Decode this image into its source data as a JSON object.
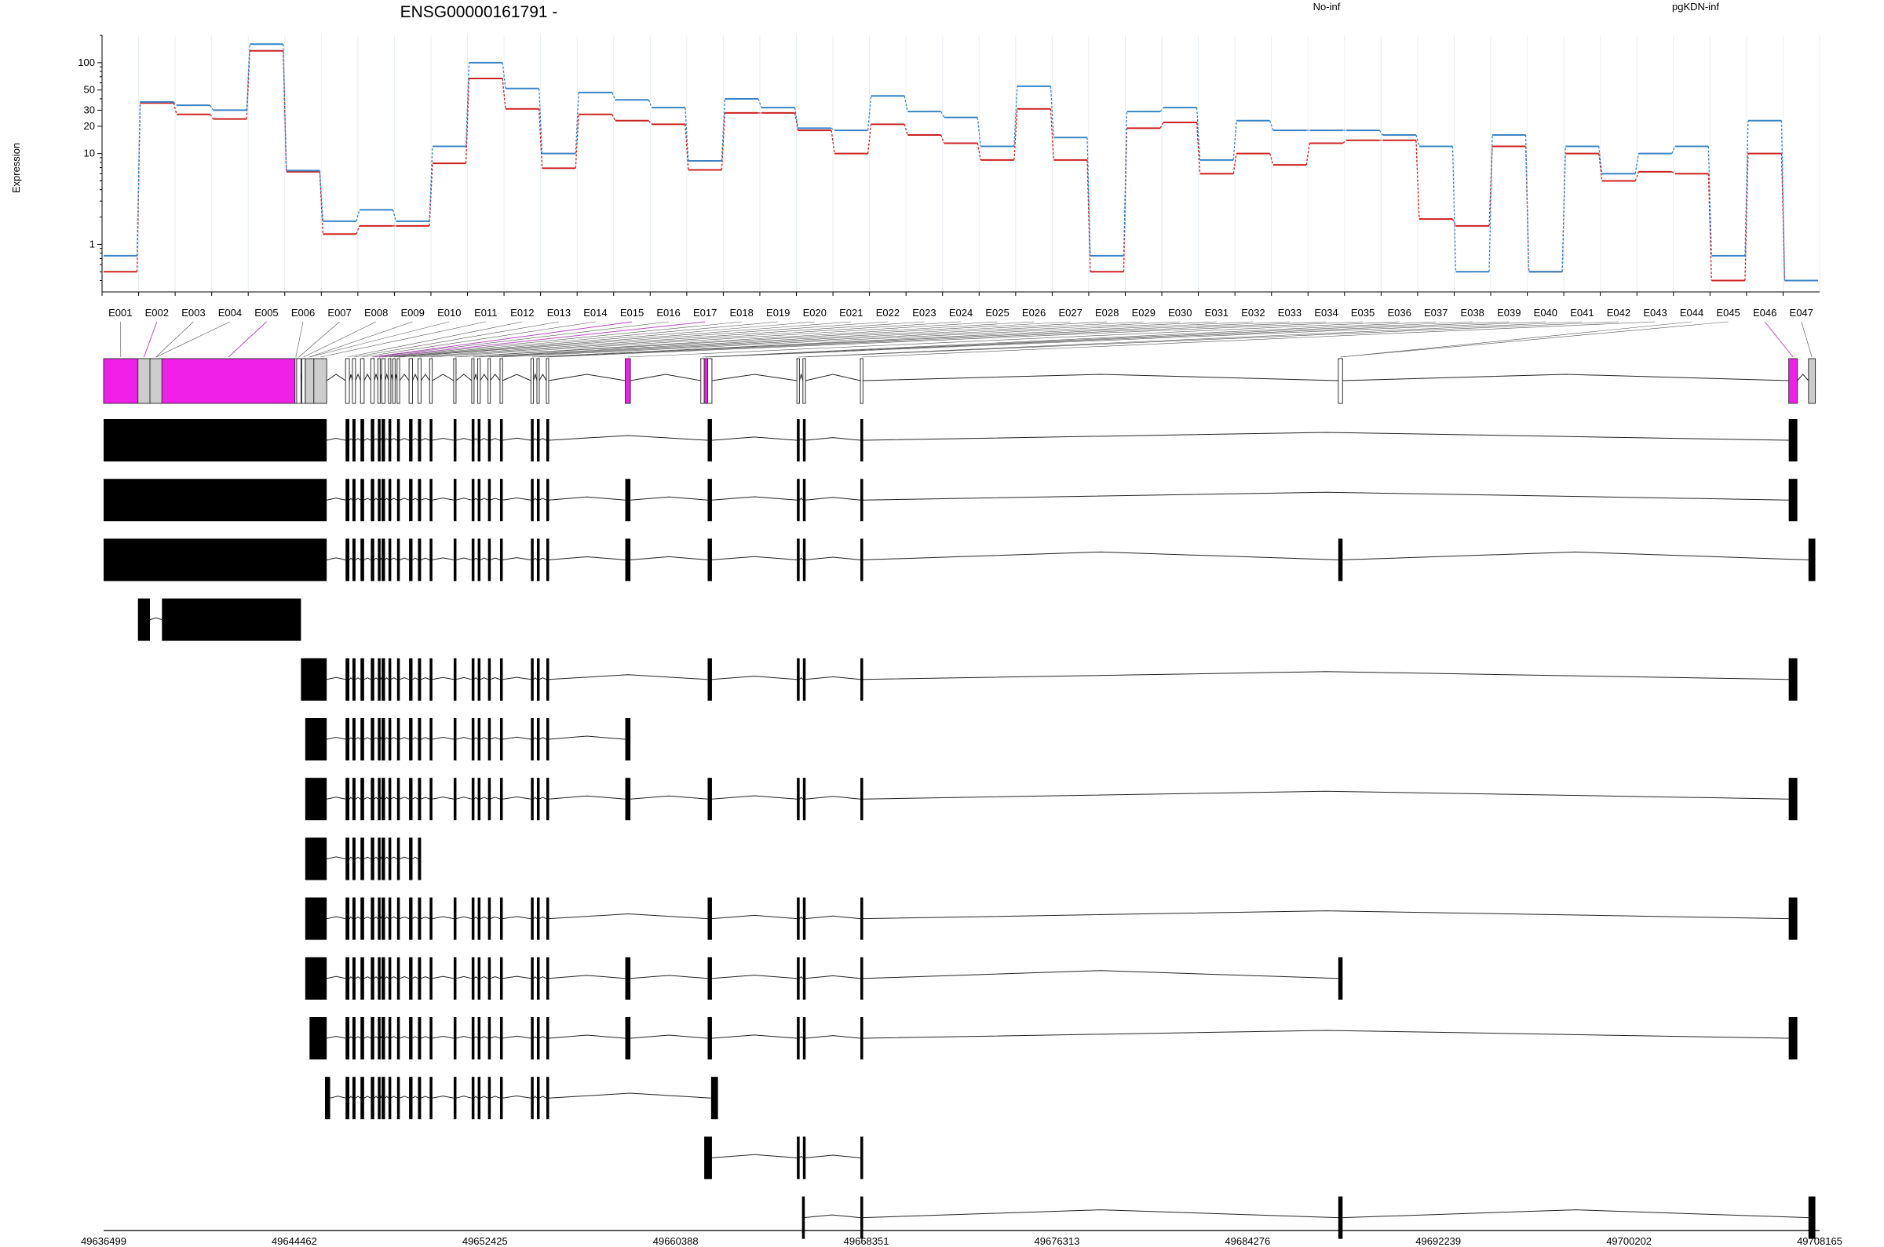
{
  "title": "ENSG00000161791 -",
  "ylabel": "Expression",
  "chart_data": {
    "type": "line",
    "title": "ENSG00000161791 -",
    "ylabel": "Expression",
    "yscale": "log",
    "ylim": [
      0.3,
      200
    ],
    "yticks": [
      1,
      10,
      20,
      30,
      50,
      100
    ],
    "grid": true,
    "legend_position": "top-right",
    "categories": [
      "E001",
      "E002",
      "E003",
      "E004",
      "E005",
      "E006",
      "E007",
      "E008",
      "E009",
      "E010",
      "E011",
      "E012",
      "E013",
      "E014",
      "E015",
      "E016",
      "E017",
      "E018",
      "E019",
      "E020",
      "E021",
      "E022",
      "E023",
      "E024",
      "E025",
      "E026",
      "E027",
      "E028",
      "E029",
      "E030",
      "E031",
      "E032",
      "E033",
      "E034",
      "E035",
      "E036",
      "E037",
      "E038",
      "E039",
      "E040",
      "E041",
      "E042",
      "E043",
      "E044",
      "E045",
      "E046",
      "E047"
    ],
    "series": [
      {
        "name": "No-inf",
        "color": "#cc2222",
        "values": [
          0.5,
          36,
          27,
          24,
          135,
          6.3,
          1.3,
          1.6,
          1.6,
          7.8,
          67,
          31,
          6.9,
          27,
          23,
          21,
          6.6,
          28,
          28,
          18,
          10,
          21,
          16,
          13,
          8.5,
          31,
          8.5,
          0.5,
          19,
          22,
          6,
          10,
          7.5,
          13,
          14,
          14,
          1.9,
          1.6,
          12,
          0.5,
          10,
          5,
          6.3,
          6,
          0.4,
          10,
          0.4
        ]
      },
      {
        "name": "pgKDN-inf",
        "color": "#3a84c4",
        "values": [
          0.75,
          37,
          34,
          30,
          160,
          6.5,
          1.8,
          2.4,
          1.8,
          12,
          100,
          52,
          10,
          47,
          39,
          32,
          8.3,
          40,
          32,
          19,
          18,
          43,
          29,
          25,
          12,
          55,
          15,
          0.75,
          29,
          32,
          8.5,
          23,
          18,
          18,
          18,
          16,
          12,
          0.5,
          16,
          0.5,
          12,
          6,
          10,
          12,
          0.75,
          23,
          0.4
        ]
      }
    ],
    "genomic_axis": {
      "ticks": [
        "49636499",
        "49644462",
        "49652425",
        "49660388",
        "49668351",
        "49676313",
        "49684276",
        "49692239",
        "49700202",
        "49708165"
      ]
    },
    "highlighted_exons": [
      "E002",
      "E005",
      "E015",
      "E017",
      "E046"
    ],
    "transcript_count": 14
  }
}
